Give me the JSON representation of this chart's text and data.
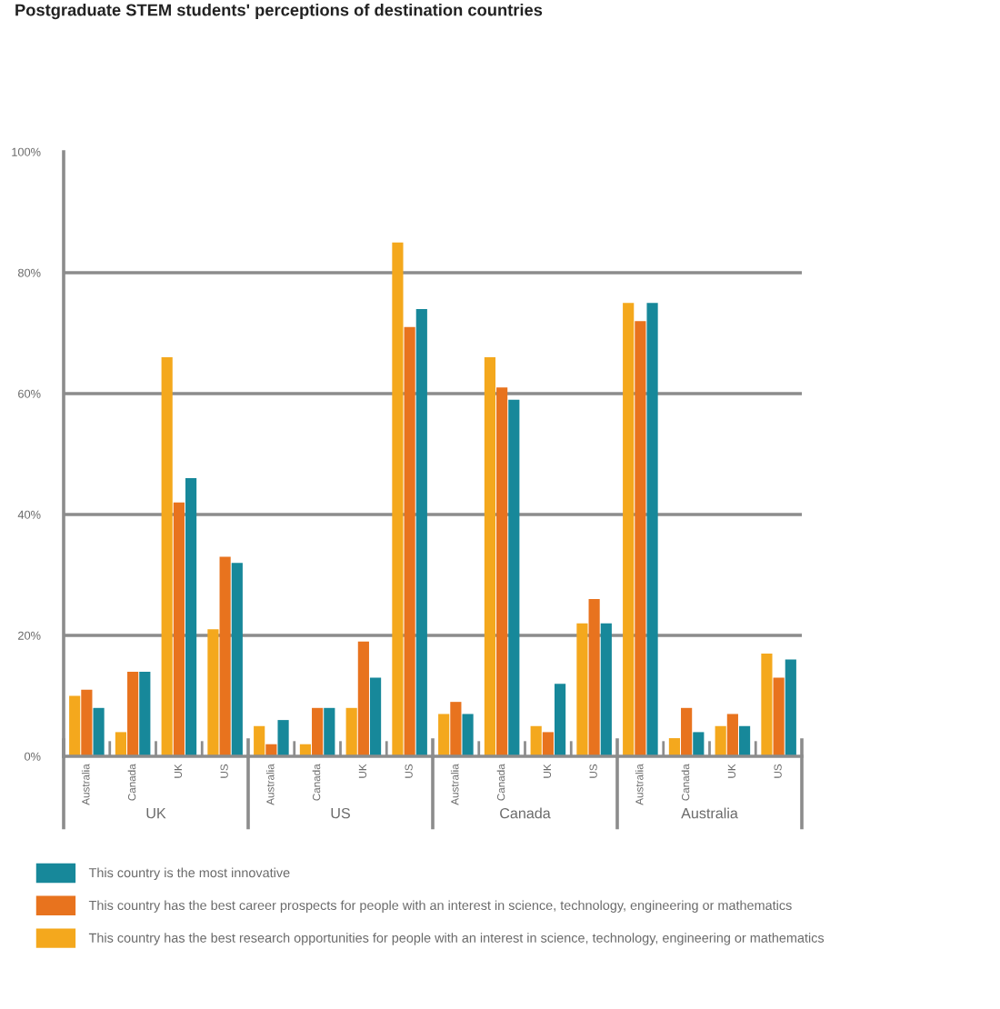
{
  "chart_data": [
    {
      "type": "bar",
      "title": "Postgraduate STEM students' perceptions of destination countries",
      "xlabel": "UK",
      "categories": [
        "Australia",
        "Canada",
        "UK",
        "US"
      ],
      "series": [
        {
          "name": "This country has the best research opportunities for people with an interest in science, technology, engineering or mathematics",
          "color": "#f4a81d",
          "values": [
            10,
            4,
            66,
            21
          ]
        },
        {
          "name": "This country has the best career prospects for people with an interest in science, technology, engineering or mathematics",
          "color": "#e8731e",
          "values": [
            11,
            14,
            42,
            33
          ]
        },
        {
          "name": "This country is the most innovative",
          "color": "#17889a",
          "values": [
            8,
            14,
            46,
            32
          ]
        }
      ],
      "ylim": [
        0,
        100
      ],
      "yticks": [
        {
          "value": 0,
          "label": "0%"
        },
        {
          "value": 20,
          "label": "20%"
        },
        {
          "value": 40,
          "label": "40%"
        },
        {
          "value": 60,
          "label": "60%"
        },
        {
          "value": 80,
          "label": "80%"
        },
        {
          "value": 100,
          "label": "100%"
        }
      ],
      "grid": "y",
      "legend": "bottom"
    },
    {
      "type": "bar",
      "xlabel": "US",
      "categories": [
        "Australia",
        "Canada",
        "UK",
        "US"
      ],
      "series": [
        {
          "color": "#f4a81d",
          "values": [
            5,
            2,
            8,
            85
          ]
        },
        {
          "color": "#e8731e",
          "values": [
            2,
            8,
            19,
            71
          ]
        },
        {
          "color": "#17889a",
          "values": [
            6,
            8,
            13,
            74
          ]
        }
      ],
      "ylim": [
        0,
        100
      ],
      "yticks": [
        {
          "value": 0,
          "label": null
        },
        {
          "value": 20,
          "label": null
        },
        {
          "value": 40,
          "label": null
        },
        {
          "value": 60,
          "label": null
        },
        {
          "value": 80,
          "label": null
        },
        {
          "value": 100,
          "label": null
        }
      ],
      "grid": "y",
      "tick_labels": "x"
    },
    {
      "type": "bar",
      "xlabel": "Canada",
      "categories": [
        "Australia",
        "Canada",
        "UK",
        "US"
      ],
      "series": [
        {
          "color": "#f4a81d",
          "values": [
            7,
            66,
            5,
            22
          ]
        },
        {
          "color": "#e8731e",
          "values": [
            9,
            61,
            4,
            26
          ]
        },
        {
          "color": "#17889a",
          "values": [
            7,
            59,
            12,
            22
          ]
        }
      ],
      "ylim": [
        0,
        100
      ],
      "yticks": [
        {
          "value": 0,
          "label": null
        },
        {
          "value": 20,
          "label": null
        },
        {
          "value": 40,
          "label": null
        },
        {
          "value": 60,
          "label": null
        },
        {
          "value": 80,
          "label": null
        },
        {
          "value": 100,
          "label": null
        }
      ],
      "grid": "y",
      "tick_labels": "x"
    },
    {
      "type": "bar",
      "xlabel": "Australia",
      "categories": [
        "Australia",
        "Canada",
        "UK",
        "US"
      ],
      "series": [
        {
          "color": "#f4a81d",
          "values": [
            75,
            3,
            5,
            17
          ]
        },
        {
          "color": "#e8731e",
          "values": [
            72,
            8,
            7,
            13
          ]
        },
        {
          "color": "#17889a",
          "values": [
            75,
            4,
            5,
            16
          ]
        }
      ],
      "ylim": [
        0,
        100
      ],
      "yticks": [
        {
          "value": 0,
          "label": null
        },
        {
          "value": 20,
          "label": null
        },
        {
          "value": 40,
          "label": null
        },
        {
          "value": 60,
          "label": null
        },
        {
          "value": 80,
          "label": null
        },
        {
          "value": 100,
          "label": null
        }
      ],
      "grid": "y",
      "tick_labels": "x"
    }
  ]
}
